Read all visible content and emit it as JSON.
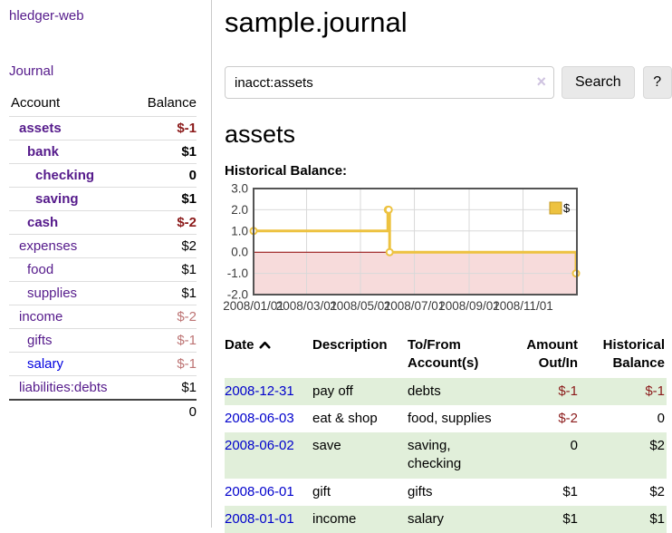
{
  "sidebar": {
    "brand": "hledger-web",
    "journal_link": "Journal",
    "accounts_table": {
      "headers": {
        "account": "Account",
        "balance": "Balance"
      },
      "rows": [
        {
          "name": "assets",
          "depth": 1,
          "balance": "$-1",
          "bold": true,
          "balance_style": "neg-strong",
          "link_style": "purple"
        },
        {
          "name": "bank",
          "depth": 2,
          "balance": "$1",
          "bold": true,
          "balance_style": "",
          "link_style": "purple"
        },
        {
          "name": "checking",
          "depth": 3,
          "balance": "0",
          "bold": true,
          "balance_style": "",
          "link_style": "purple"
        },
        {
          "name": "saving",
          "depth": 3,
          "balance": "$1",
          "bold": true,
          "balance_style": "",
          "link_style": "purple"
        },
        {
          "name": "cash",
          "depth": 2,
          "balance": "$-2",
          "bold": true,
          "balance_style": "neg-strong",
          "link_style": "purple"
        },
        {
          "name": "expenses",
          "depth": 1,
          "balance": "$2",
          "bold": false,
          "balance_style": "",
          "link_style": "purple"
        },
        {
          "name": "food",
          "depth": 2,
          "balance": "$1",
          "bold": false,
          "balance_style": "",
          "link_style": "purple"
        },
        {
          "name": "supplies",
          "depth": 2,
          "balance": "$1",
          "bold": false,
          "balance_style": "",
          "link_style": "purple"
        },
        {
          "name": "income",
          "depth": 1,
          "balance": "$-2",
          "bold": false,
          "balance_style": "neg-dim",
          "link_style": "purple"
        },
        {
          "name": "gifts",
          "depth": 2,
          "balance": "$-1",
          "bold": false,
          "balance_style": "neg-dim",
          "link_style": "purple"
        },
        {
          "name": "salary",
          "depth": 2,
          "balance": "$-1",
          "bold": false,
          "balance_style": "neg-dim",
          "link_style": "blue"
        },
        {
          "name": "liabilities:debts",
          "depth": 1,
          "balance": "$1",
          "bold": false,
          "balance_style": "",
          "link_style": "purple"
        }
      ],
      "total": "0"
    }
  },
  "header": {
    "title": "sample.journal"
  },
  "search": {
    "value": "inacct:assets",
    "clear_icon": "×",
    "button": "Search",
    "help_button": "?"
  },
  "account_page": {
    "heading": "assets",
    "chart_label": "Historical Balance:"
  },
  "chart_data": {
    "type": "line",
    "step": true,
    "title": "Historical Balance:",
    "series": [
      {
        "name": "$",
        "color": "#edc240",
        "points": [
          [
            "2008-01-01",
            1.0
          ],
          [
            "2008-06-01",
            2.0
          ],
          [
            "2008-06-02",
            2.0
          ],
          [
            "2008-06-03",
            0.0
          ],
          [
            "2008-12-31",
            -1.0
          ]
        ]
      }
    ],
    "x_range": [
      "2008-01-01",
      "2009-01-01"
    ],
    "x_ticks": [
      "2008/01/01",
      "2008/03/01",
      "2008/05/01",
      "2008/07/01",
      "2008/09/01",
      "2008/11/01"
    ],
    "y_ticks": [
      -2,
      -1,
      0,
      1,
      2,
      3
    ],
    "ylim": [
      -2,
      3
    ],
    "legend": {
      "label": "$",
      "position": "top-right"
    },
    "grid": true,
    "colors": {
      "negative_region": "#f7dbdb",
      "zero_line": "#8b0000",
      "gridline": "#d9d9d9",
      "plot_border": "#545454",
      "tick_text": "#3a3a3a",
      "legend_swatch_border": "#c49a1f"
    }
  },
  "transactions": {
    "headers": {
      "date": "Date",
      "description": "Description",
      "tofrom": "To/From\nAccount(s)",
      "amount": "Amount\nOut/In",
      "balance": "Historical\nBalance"
    },
    "rows": [
      {
        "date": "2008-12-31",
        "description": "pay off",
        "accounts": "debts",
        "amount": "$-1",
        "balance": "$-1",
        "amount_style": "neg-strong",
        "balance_style": "neg-strong"
      },
      {
        "date": "2008-06-03",
        "description": "eat & shop",
        "accounts": "food, supplies",
        "amount": "$-2",
        "balance": "0",
        "amount_style": "neg-strong",
        "balance_style": ""
      },
      {
        "date": "2008-06-02",
        "description": "save",
        "accounts": "saving,\nchecking",
        "amount": "0",
        "balance": "$2",
        "amount_style": "",
        "balance_style": ""
      },
      {
        "date": "2008-06-01",
        "description": "gift",
        "accounts": "gifts",
        "amount": "$1",
        "balance": "$2",
        "amount_style": "",
        "balance_style": ""
      },
      {
        "date": "2008-01-01",
        "description": "income",
        "accounts": "salary",
        "amount": "$1",
        "balance": "$1",
        "amount_style": "",
        "balance_style": ""
      }
    ]
  }
}
